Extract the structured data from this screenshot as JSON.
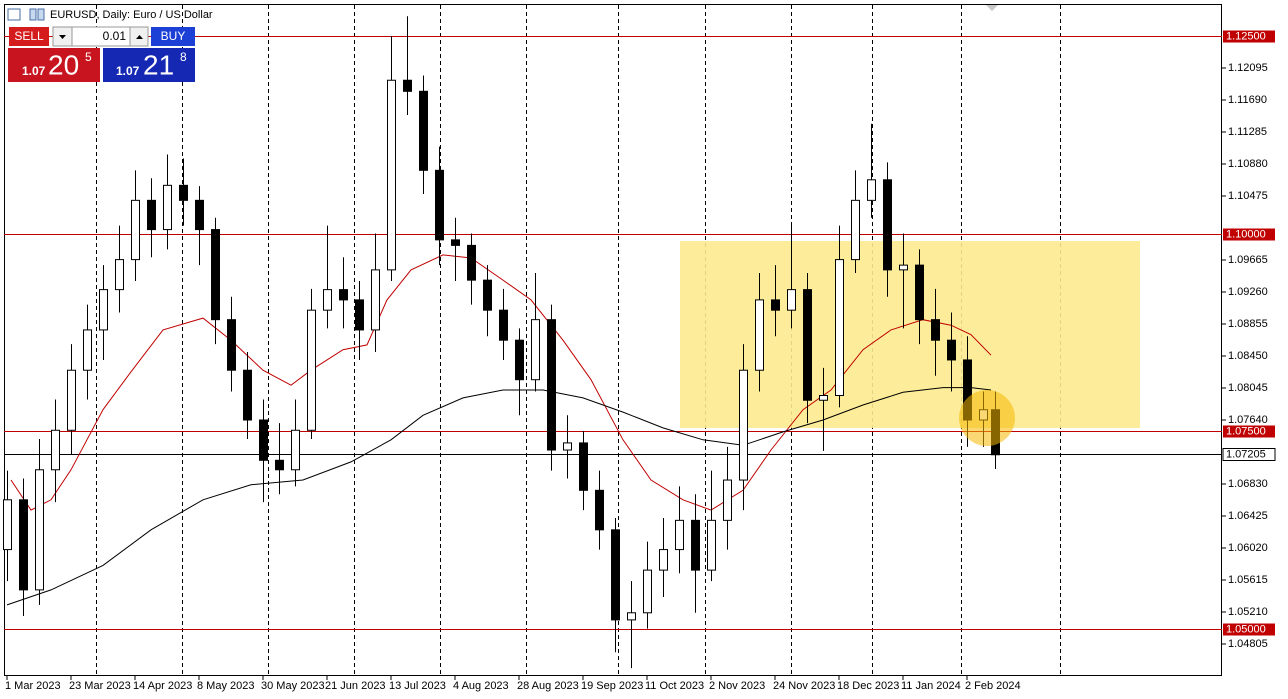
{
  "window": {
    "title": "EURUSD, Daily: Euro / US Dollar"
  },
  "trade_panel": {
    "sell": "SELL",
    "buy": "BUY",
    "volume": "0.01",
    "bid": {
      "big": "1.07",
      "main": "20",
      "small": "5"
    },
    "ask": {
      "big": "1.07",
      "main": "21",
      "small": "8"
    }
  },
  "chart_data": {
    "type": "candlestick",
    "up_color": "#ffffff",
    "down_color": "#000000",
    "x": [
      0,
      4,
      8,
      12,
      16,
      20,
      24,
      28,
      32,
      36,
      40,
      44,
      48,
      52,
      56,
      60,
      64,
      68,
      72,
      76,
      80,
      84,
      88,
      92,
      96,
      100,
      104,
      108,
      112,
      116,
      120,
      124,
      128,
      132,
      136,
      140,
      144,
      148,
      152,
      156,
      160,
      164,
      168,
      172,
      176,
      180,
      184,
      188,
      192,
      196,
      200,
      204,
      208,
      212,
      216,
      220,
      224,
      228,
      232,
      236,
      240,
      244,
      247
    ],
    "open": [
      1.06,
      1.0663,
      1.0549,
      1.0701,
      1.0751,
      1.0827,
      1.0878,
      1.0929,
      1.0967,
      1.1042,
      1.1005,
      1.1061,
      1.1042,
      1.1005,
      1.0891,
      1.0827,
      1.0764,
      1.0713,
      1.0701,
      1.0751,
      1.0903,
      1.0929,
      1.0916,
      1.0878,
      1.0954,
      1.1194,
      1.118,
      1.108,
      1.0992,
      1.0985,
      1.0941,
      1.0903,
      1.0865,
      1.0815,
      1.0891,
      1.0726,
      1.0735,
      1.0675,
      1.0625,
      1.0511,
      1.052,
      1.0574,
      1.06,
      1.0637,
      1.0574,
      1.0637,
      1.0688,
      1.0827,
      1.0916,
      1.0903,
      1.0929,
      1.0789,
      1.0795,
      1.0967,
      1.1042,
      1.1068,
      1.0954,
      1.096,
      1.0891,
      1.0865,
      1.084,
      1.0764,
      1.0777
    ],
    "high": [
      1.07,
      1.069,
      1.074,
      1.079,
      1.086,
      1.091,
      1.096,
      1.101,
      1.108,
      1.107,
      1.11,
      1.1095,
      1.106,
      1.102,
      1.092,
      1.085,
      1.079,
      1.076,
      1.079,
      1.093,
      1.101,
      1.097,
      1.094,
      1.1,
      1.125,
      1.1275,
      1.12,
      1.111,
      1.102,
      1.1,
      1.096,
      1.093,
      1.088,
      1.095,
      1.091,
      1.077,
      1.075,
      1.07,
      1.064,
      1.056,
      1.061,
      1.064,
      1.068,
      1.067,
      1.07,
      1.073,
      1.086,
      1.095,
      1.096,
      1.101,
      1.095,
      1.083,
      1.101,
      1.108,
      1.1139,
      1.109,
      1.1,
      1.098,
      1.093,
      1.09,
      1.087,
      1.08,
      1.08
    ],
    "low": [
      1.056,
      1.0516,
      1.053,
      1.066,
      1.072,
      1.079,
      1.084,
      1.09,
      1.094,
      1.097,
      1.098,
      1.101,
      1.096,
      1.086,
      1.08,
      1.074,
      1.066,
      1.067,
      1.068,
      1.074,
      1.088,
      1.088,
      1.084,
      1.085,
      1.094,
      1.115,
      1.105,
      1.096,
      1.094,
      1.091,
      1.087,
      1.084,
      1.077,
      1.08,
      1.07,
      1.069,
      1.065,
      1.06,
      1.047,
      1.045,
      1.05,
      1.054,
      1.057,
      1.052,
      1.056,
      1.06,
      1.065,
      1.08,
      1.087,
      1.088,
      1.076,
      1.0725,
      1.078,
      1.095,
      1.102,
      1.092,
      1.088,
      1.086,
      1.082,
      1.08,
      1.073,
      1.073,
      1.0702
    ],
    "close": [
      1.0663,
      1.0549,
      1.0701,
      1.0751,
      1.0827,
      1.0878,
      1.0929,
      1.0967,
      1.1042,
      1.1005,
      1.1061,
      1.1042,
      1.1005,
      1.0891,
      1.0827,
      1.0764,
      1.0713,
      1.0701,
      1.0751,
      1.0903,
      1.0929,
      1.0916,
      1.0878,
      1.0954,
      1.1194,
      1.118,
      1.108,
      1.0992,
      1.0985,
      1.0941,
      1.0903,
      1.0865,
      1.0815,
      1.0891,
      1.0726,
      1.0735,
      1.0675,
      1.0625,
      1.0511,
      1.052,
      1.0574,
      1.06,
      1.0637,
      1.0574,
      1.0637,
      1.0688,
      1.0827,
      1.0916,
      1.0903,
      1.0929,
      1.0789,
      1.0795,
      1.0967,
      1.1042,
      1.1068,
      1.0954,
      1.096,
      1.0891,
      1.0865,
      1.084,
      1.0764,
      1.0777,
      1.072
    ],
    "moving_averages": [
      {
        "color": "#c00000",
        "x": [
          1,
          6,
          11,
          16,
          24,
          31,
          39,
          49,
          56,
          64,
          71,
          76,
          84,
          90,
          95,
          101,
          109,
          116,
          124,
          131,
          139,
          146,
          154,
          161,
          169,
          176,
          184,
          191,
          199,
          206,
          214,
          221,
          229,
          236,
          241,
          246
        ],
        "values": [
          1.0688,
          1.065,
          1.0663,
          1.0701,
          1.0777,
          1.0825,
          1.0878,
          1.0893,
          1.0865,
          1.0827,
          1.0808,
          1.0827,
          1.0853,
          1.0859,
          1.0916,
          1.0954,
          1.0973,
          1.0969,
          1.0941,
          1.0916,
          1.0865,
          1.0815,
          1.0739,
          1.0688,
          1.0663,
          1.065,
          1.0675,
          1.0726,
          1.0777,
          1.0802,
          1.0853,
          1.0878,
          1.0891,
          1.0884,
          1.0872,
          1.0846
        ]
      },
      {
        "color": "#000000",
        "x": [
          0,
          11,
          24,
          36,
          49,
          61,
          74,
          86,
          96,
          104,
          114,
          124,
          134,
          144,
          154,
          164,
          174,
          184,
          194,
          204,
          214,
          224,
          234,
          241,
          246
        ],
        "values": [
          1.053,
          1.0549,
          1.058,
          1.0625,
          1.0663,
          1.0682,
          1.0688,
          1.0711,
          1.0739,
          1.077,
          1.0792,
          1.0802,
          1.0802,
          1.0792,
          1.0774,
          1.0754,
          1.0739,
          1.0732,
          1.0749,
          1.0764,
          1.0783,
          1.0799,
          1.0805,
          1.0805,
          1.0802
        ]
      }
    ],
    "hlines": [
      {
        "value": 1.125,
        "label": "1.12500",
        "color": "#c00000"
      },
      {
        "value": 1.1,
        "label": "1.10000",
        "color": "#c00000"
      },
      {
        "value": 1.075,
        "label": "1.07500",
        "color": "#c00000"
      },
      {
        "value": 1.05,
        "label": "1.05000",
        "color": "#c00000"
      }
    ],
    "current_price": {
      "value": 1.07205,
      "label": "1.07205",
      "color": "#000000"
    },
    "xlim": [
      -0.75,
      303.75
    ],
    "ylim": [
      1.044,
      1.12905
    ],
    "xticks": [
      {
        "value": 0,
        "label": "1 Mar 2023"
      },
      {
        "value": 16,
        "label": "23 Mar 2023"
      },
      {
        "value": 32,
        "label": "14 Apr 2023"
      },
      {
        "value": 48,
        "label": "8 May 2023"
      },
      {
        "value": 64,
        "label": "30 May 2023"
      },
      {
        "value": 80,
        "label": "21 Jun 2023"
      },
      {
        "value": 96,
        "label": "13 Jul 2023"
      },
      {
        "value": 112,
        "label": "4 Aug 2023"
      },
      {
        "value": 128,
        "label": "28 Aug 2023"
      },
      {
        "value": 144,
        "label": "19 Sep 2023"
      },
      {
        "value": 160,
        "label": "11 Oct 2023"
      },
      {
        "value": 176,
        "label": "2 Nov 2023"
      },
      {
        "value": 192,
        "label": "24 Nov 2023"
      },
      {
        "value": 208,
        "label": "18 Dec 2023"
      },
      {
        "value": 224,
        "label": "11 Jan 2024"
      },
      {
        "value": 240,
        "label": "2 Feb 2024"
      }
    ],
    "yticks": [
      {
        "value": 1.12095,
        "label": "1.12095"
      },
      {
        "value": 1.1169,
        "label": "1.11690"
      },
      {
        "value": 1.11285,
        "label": "1.11285"
      },
      {
        "value": 1.1088,
        "label": "1.10880"
      },
      {
        "value": 1.10475,
        "label": "1.10475"
      },
      {
        "value": 1.09665,
        "label": "1.09665"
      },
      {
        "value": 1.0926,
        "label": "1.09260"
      },
      {
        "value": 1.08855,
        "label": "1.08855"
      },
      {
        "value": 1.0845,
        "label": "1.08450"
      },
      {
        "value": 1.08045,
        "label": "1.08045"
      },
      {
        "value": 1.0764,
        "label": "1.07640"
      },
      {
        "value": 1.0683,
        "label": "1.06830"
      },
      {
        "value": 1.06425,
        "label": "1.06425"
      },
      {
        "value": 1.0602,
        "label": "1.06020"
      },
      {
        "value": 1.05615,
        "label": "1.05615"
      },
      {
        "value": 1.0521,
        "label": "1.05210"
      },
      {
        "value": 1.04805,
        "label": "1.04805"
      }
    ]
  }
}
